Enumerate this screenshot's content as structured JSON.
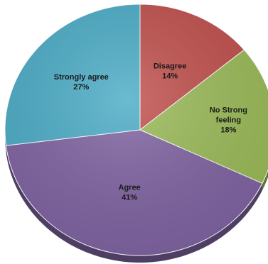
{
  "chart_data": {
    "type": "pie",
    "title": "",
    "style": "3d",
    "slices": [
      {
        "label_lines": [
          "Disagree"
        ],
        "value": 14,
        "value_label": "14%",
        "color": "#c0504d"
      },
      {
        "label_lines": [
          "No Strong",
          "feeling"
        ],
        "value": 18,
        "value_label": "18%",
        "color": "#9bbb59"
      },
      {
        "label_lines": [
          "Agree"
        ],
        "value": 41,
        "value_label": "41%",
        "color": "#8064a2"
      },
      {
        "label_lines": [
          "Strongly agree"
        ],
        "value": 27,
        "value_label": "27%",
        "color": "#4bacc6"
      }
    ]
  }
}
